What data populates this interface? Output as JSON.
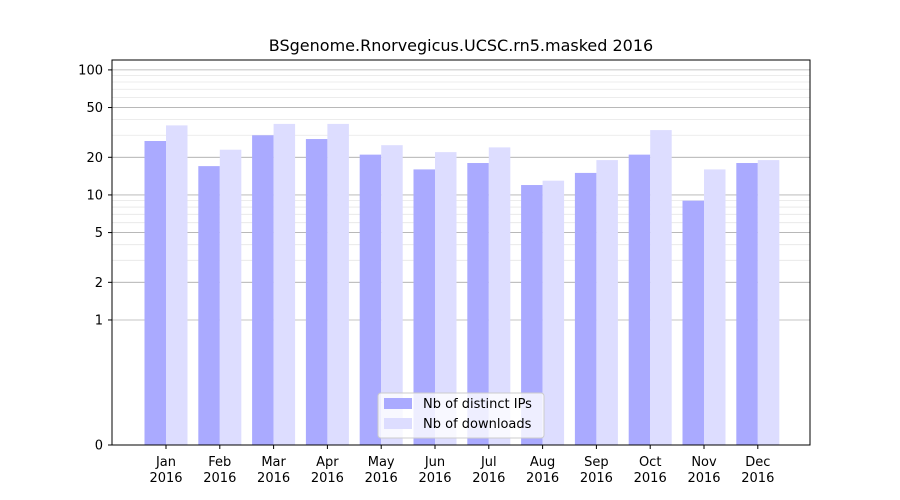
{
  "chart_data": {
    "type": "bar",
    "title": "BSgenome.Rnorvegicus.UCSC.rn5.masked 2016",
    "xlabel": "",
    "ylabel": "",
    "y_scale": "symlog",
    "ylim": [
      0,
      120
    ],
    "y_ticks": [
      0,
      1,
      2,
      5,
      10,
      20,
      50,
      100
    ],
    "categories": [
      [
        "Jan",
        "2016"
      ],
      [
        "Feb",
        "2016"
      ],
      [
        "Mar",
        "2016"
      ],
      [
        "Apr",
        "2016"
      ],
      [
        "May",
        "2016"
      ],
      [
        "Jun",
        "2016"
      ],
      [
        "Jul",
        "2016"
      ],
      [
        "Aug",
        "2016"
      ],
      [
        "Sep",
        "2016"
      ],
      [
        "Oct",
        "2016"
      ],
      [
        "Nov",
        "2016"
      ],
      [
        "Dec",
        "2016"
      ]
    ],
    "series": [
      {
        "name": "Nb of distinct IPs",
        "color": "#aaaaff",
        "values": [
          27,
          17,
          30,
          28,
          21,
          16,
          18,
          12,
          15,
          21,
          9,
          18
        ]
      },
      {
        "name": "Nb of downloads",
        "color": "#ddddff",
        "values": [
          36,
          23,
          37,
          37,
          25,
          22,
          24,
          13,
          19,
          33,
          16,
          19
        ]
      }
    ],
    "grid": true,
    "legend_position": "bottom-center"
  }
}
